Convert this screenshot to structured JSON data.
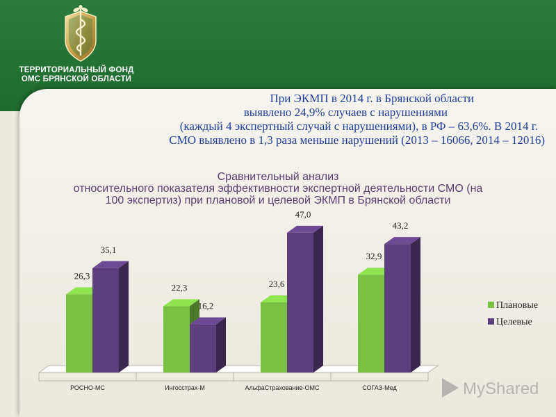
{
  "header": {
    "org_name_line1": "ТЕРРИТОРИАЛЬНЫЙ ФОНД",
    "org_name_line2": "ОМС БРЯНСКОЙ ОБЛАСТИ",
    "logo_icon": "caduceus-shield-icon"
  },
  "intro_text": {
    "line1": "При ЭКМП в 2014 г. в Брянской области",
    "line2": "выявлено 24,9% случаев с нарушениями",
    "line3": "(каждый 4 экспертный случай с нарушениями), в РФ – 63,6%. В 2014 г.",
    "line4": "СМО выявлено в 1,3 раза меньше нарушений (2013 – 16066, 2014 – 12016)"
  },
  "chart_data": {
    "type": "bar",
    "title_lines": [
      "Сравнительный анализ",
      "относительного показателя эффективности экспертной деятельности СМО (на",
      "100 экспертиз) при плановой и целевой ЭКМП в Брянской области"
    ],
    "categories": [
      "РОСНО-МС",
      "Ингосстрах-М",
      "АльфаСтрахование-ОМС",
      "СОГАЗ-Мед"
    ],
    "series": [
      {
        "name": "Плановые",
        "values": [
          26.3,
          22.3,
          23.6,
          32.9
        ],
        "labels": [
          "26,3",
          "22,3",
          "23,6",
          "32,9"
        ],
        "color": "#7ac143"
      },
      {
        "name": "Целевые",
        "values": [
          35.1,
          16.2,
          47.0,
          43.2
        ],
        "labels": [
          "35,1",
          "16,2",
          "47,0",
          "43,2"
        ],
        "color": "#5e3f7d"
      }
    ],
    "ylim": [
      0,
      50
    ],
    "style": "3d-clustered-column",
    "legend_position": "right",
    "grid": false
  },
  "watermark": {
    "text": "MyShared",
    "icon": "play-triangle-icon"
  },
  "colors": {
    "header_green": "#2b7a3c",
    "intro_text_blue": "#1f3f9a",
    "title_purple": "#5a3f6e",
    "planned_green": "#7ac143",
    "target_purple": "#5e3f7d"
  }
}
